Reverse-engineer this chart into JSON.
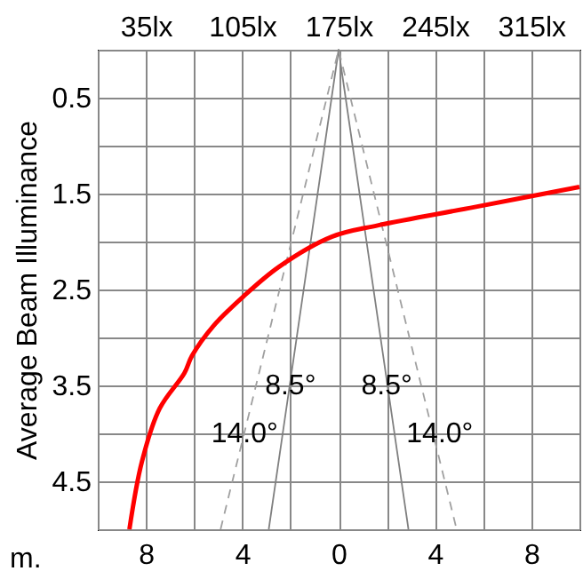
{
  "chart_data": {
    "type": "line",
    "ylabel": "Average Beam Illuminance",
    "xlabel": "m.",
    "grid": true,
    "xlim": [
      -10,
      10
    ],
    "xticks": [
      {
        "value": -10,
        "label": null
      },
      {
        "value": -8,
        "label": "8"
      },
      {
        "value": -6,
        "label": null
      },
      {
        "value": -4,
        "label": "4"
      },
      {
        "value": -2,
        "label": null
      },
      0,
      {
        "value": 2,
        "label": null
      },
      4,
      {
        "value": 6,
        "label": null
      },
      8,
      {
        "value": 10,
        "label": null
      }
    ],
    "x2lim": [
      0,
      350
    ],
    "x2ticks": [
      {
        "value": 35,
        "label": "35lx"
      },
      {
        "value": 105,
        "label": "105lx"
      },
      {
        "value": 175,
        "label": "175lx"
      },
      {
        "value": 245,
        "label": "245lx"
      },
      {
        "value": 315,
        "label": "315lx"
      }
    ],
    "ylim": [
      5,
      0
    ],
    "yticks": [
      {
        "value": 0,
        "label": null
      },
      0.5,
      {
        "value": 1,
        "label": null
      },
      1.5,
      {
        "value": 2,
        "label": null
      },
      2.5,
      {
        "value": 3,
        "label": null
      },
      3.5,
      {
        "value": 4,
        "label": null
      },
      4.5,
      {
        "value": 5,
        "label": null
      }
    ],
    "series": [
      {
        "color": "#ff0000",
        "axis": "x2",
        "x": [
          350,
          274,
          204,
          170,
          132,
          106,
          84,
          68.5,
          63,
          45,
          32,
          23
        ],
        "values": [
          1.43,
          1.64,
          1.83,
          1.95,
          2.26,
          2.57,
          2.88,
          3.19,
          3.37,
          3.74,
          4.3,
          5
        ]
      },
      {
        "color": "#808080",
        "line_style": "solid",
        "x": [
          -2.9,
          0,
          2.9
        ],
        "values": [
          5,
          0,
          5
        ]
      },
      {
        "color": "#a0a0a0",
        "line_style": "dashed",
        "x": [
          -4.9,
          0,
          4.9
        ],
        "values": [
          5,
          0,
          5
        ]
      }
    ],
    "annotations": [
      {
        "text": "8.5°",
        "x": -2.0,
        "y": 3.5
      },
      {
        "text": "8.5°",
        "x": 2.0,
        "y": 3.5
      },
      {
        "text": "14.0°",
        "x": -3.9,
        "y": 4.0
      },
      {
        "text": "14.0°",
        "x": 4.2,
        "y": 4.0
      }
    ]
  }
}
